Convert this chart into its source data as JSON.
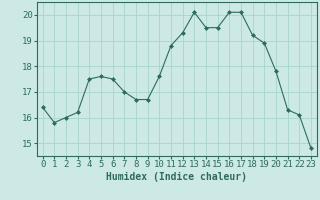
{
  "x": [
    0,
    1,
    2,
    3,
    4,
    5,
    6,
    7,
    8,
    9,
    10,
    11,
    12,
    13,
    14,
    15,
    16,
    17,
    18,
    19,
    20,
    21,
    22,
    23
  ],
  "y": [
    16.4,
    15.8,
    16.0,
    16.2,
    17.5,
    17.6,
    17.5,
    17.0,
    16.7,
    16.7,
    17.6,
    18.8,
    19.3,
    20.1,
    19.5,
    19.5,
    20.1,
    20.1,
    19.2,
    18.9,
    17.8,
    16.3,
    16.1,
    14.8
  ],
  "line_color": "#2e6b5e",
  "marker": "D",
  "marker_size": 2,
  "bg_color": "#cce9e5",
  "grid_color": "#aad4cf",
  "xlabel": "Humidex (Indice chaleur)",
  "ylim": [
    14.5,
    20.5
  ],
  "xlim": [
    -0.5,
    23.5
  ],
  "yticks": [
    15,
    16,
    17,
    18,
    19,
    20
  ],
  "xticks": [
    0,
    1,
    2,
    3,
    4,
    5,
    6,
    7,
    8,
    9,
    10,
    11,
    12,
    13,
    14,
    15,
    16,
    17,
    18,
    19,
    20,
    21,
    22,
    23
  ],
  "tick_color": "#2e6b5e",
  "label_color": "#2e6b5e",
  "font_size": 6.5
}
